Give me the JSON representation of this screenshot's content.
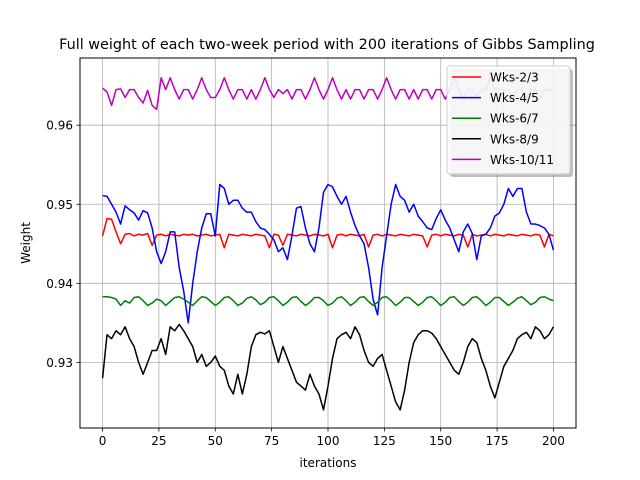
{
  "chart_data": {
    "type": "line",
    "title": "Full weight of each two-week period with 200 iterations of Gibbs Sampling",
    "xlabel": "iterations",
    "ylabel": "Weight",
    "xlim": [
      -10,
      210
    ],
    "ylim": [
      0.9217,
      0.9685
    ],
    "xticks": [
      0,
      25,
      50,
      75,
      100,
      125,
      150,
      175,
      200
    ],
    "yticks": [
      0.93,
      0.94,
      0.95,
      0.96
    ],
    "ytick_labels": [
      "0.93",
      "0.94",
      "0.95",
      "0.96"
    ],
    "grid": true,
    "legend": {
      "placement": "top-right",
      "shadow": true
    },
    "series": [
      {
        "name": "Wks-2/3",
        "color": "#ff0000",
        "x": [
          0,
          2,
          4,
          6,
          8,
          10,
          12,
          14,
          16,
          18,
          20,
          22,
          24,
          26,
          28,
          30,
          32,
          34,
          36,
          38,
          40,
          42,
          44,
          46,
          48,
          50,
          52,
          54,
          56,
          58,
          60,
          62,
          64,
          66,
          68,
          70,
          72,
          74,
          76,
          78,
          80,
          82,
          84,
          86,
          88,
          90,
          92,
          94,
          96,
          98,
          100,
          102,
          104,
          106,
          108,
          110,
          112,
          114,
          116,
          118,
          120,
          122,
          124,
          126,
          128,
          130,
          132,
          134,
          136,
          138,
          140,
          142,
          144,
          146,
          148,
          150,
          152,
          154,
          156,
          158,
          160,
          162,
          164,
          166,
          168,
          170,
          172,
          174,
          176,
          178,
          180,
          182,
          184,
          186,
          188,
          190,
          192,
          194,
          196,
          198,
          200
        ],
        "values": [
          0.946,
          0.9482,
          0.9481,
          0.9465,
          0.945,
          0.9462,
          0.9463,
          0.946,
          0.9462,
          0.9461,
          0.9463,
          0.9448,
          0.9461,
          0.9462,
          0.946,
          0.9462,
          0.9461,
          0.946,
          0.9462,
          0.9461,
          0.9462,
          0.946,
          0.9461,
          0.9462,
          0.946,
          0.9461,
          0.9462,
          0.9445,
          0.9462,
          0.9461,
          0.946,
          0.9462,
          0.9461,
          0.946,
          0.9462,
          0.9461,
          0.946,
          0.9445,
          0.9462,
          0.9461,
          0.9448,
          0.9462,
          0.9461,
          0.946,
          0.9462,
          0.9461,
          0.946,
          0.9462,
          0.9461,
          0.946,
          0.9462,
          0.9445,
          0.9461,
          0.9462,
          0.946,
          0.9462,
          0.9461,
          0.946,
          0.9462,
          0.9446,
          0.9461,
          0.9462,
          0.946,
          0.9462,
          0.9461,
          0.946,
          0.9462,
          0.9461,
          0.946,
          0.9462,
          0.9461,
          0.946,
          0.9446,
          0.9461,
          0.9462,
          0.946,
          0.9462,
          0.9461,
          0.946,
          0.9462,
          0.9461,
          0.9446,
          0.9462,
          0.946,
          0.9461,
          0.9462,
          0.946,
          0.9462,
          0.9461,
          0.946,
          0.9462,
          0.9461,
          0.946,
          0.9462,
          0.9461,
          0.946,
          0.9462,
          0.9461,
          0.9446,
          0.9462,
          0.946
        ]
      },
      {
        "name": "Wks-4/5",
        "color": "#0000ff",
        "x": [
          0,
          2,
          4,
          6,
          8,
          10,
          12,
          14,
          16,
          18,
          20,
          22,
          24,
          26,
          28,
          30,
          32,
          34,
          36,
          38,
          40,
          42,
          44,
          46,
          48,
          50,
          52,
          54,
          56,
          58,
          60,
          62,
          64,
          66,
          68,
          70,
          72,
          74,
          76,
          78,
          80,
          82,
          84,
          86,
          88,
          90,
          92,
          94,
          96,
          98,
          100,
          102,
          104,
          106,
          108,
          110,
          112,
          114,
          116,
          118,
          120,
          122,
          124,
          126,
          128,
          130,
          132,
          134,
          136,
          138,
          140,
          142,
          144,
          146,
          148,
          150,
          152,
          154,
          156,
          158,
          160,
          162,
          164,
          166,
          168,
          170,
          172,
          174,
          176,
          178,
          180,
          182,
          184,
          186,
          188,
          190,
          192,
          194,
          196,
          198,
          200
        ],
        "values": [
          0.9511,
          0.951,
          0.95,
          0.949,
          0.9475,
          0.9498,
          0.9493,
          0.9489,
          0.948,
          0.9492,
          0.9489,
          0.947,
          0.944,
          0.9425,
          0.944,
          0.9465,
          0.9465,
          0.942,
          0.939,
          0.935,
          0.94,
          0.944,
          0.947,
          0.9488,
          0.9488,
          0.946,
          0.9525,
          0.952,
          0.95,
          0.9505,
          0.9505,
          0.9495,
          0.949,
          0.949,
          0.9478,
          0.947,
          0.9468,
          0.9462,
          0.9455,
          0.944,
          0.9445,
          0.943,
          0.946,
          0.9495,
          0.9497,
          0.947,
          0.945,
          0.944,
          0.947,
          0.9515,
          0.9525,
          0.9522,
          0.951,
          0.95,
          0.951,
          0.949,
          0.9473,
          0.946,
          0.945,
          0.942,
          0.938,
          0.936,
          0.942,
          0.946,
          0.95,
          0.9525,
          0.951,
          0.9505,
          0.949,
          0.95,
          0.9485,
          0.9478,
          0.947,
          0.9468,
          0.9482,
          0.9493,
          0.948,
          0.947,
          0.9455,
          0.944,
          0.9465,
          0.9475,
          0.9463,
          0.943,
          0.946,
          0.9462,
          0.947,
          0.9485,
          0.9489,
          0.95,
          0.952,
          0.951,
          0.952,
          0.952,
          0.949,
          0.9475,
          0.9475,
          0.9473,
          0.947,
          0.9462,
          0.9442
        ]
      },
      {
        "name": "Wks-6/7",
        "color": "#008000",
        "x": [
          0,
          2,
          4,
          6,
          8,
          10,
          12,
          14,
          16,
          18,
          20,
          22,
          24,
          26,
          28,
          30,
          32,
          34,
          36,
          38,
          40,
          42,
          44,
          46,
          48,
          50,
          52,
          54,
          56,
          58,
          60,
          62,
          64,
          66,
          68,
          70,
          72,
          74,
          76,
          78,
          80,
          82,
          84,
          86,
          88,
          90,
          92,
          94,
          96,
          98,
          100,
          102,
          104,
          106,
          108,
          110,
          112,
          114,
          116,
          118,
          120,
          122,
          124,
          126,
          128,
          130,
          132,
          134,
          136,
          138,
          140,
          142,
          144,
          146,
          148,
          150,
          152,
          154,
          156,
          158,
          160,
          162,
          164,
          166,
          168,
          170,
          172,
          174,
          176,
          178,
          180,
          182,
          184,
          186,
          188,
          190,
          192,
          194,
          196,
          198,
          200
        ],
        "values": [
          0.9383,
          0.9383,
          0.9382,
          0.938,
          0.9372,
          0.9378,
          0.9375,
          0.9382,
          0.9383,
          0.9378,
          0.9372,
          0.9375,
          0.938,
          0.9378,
          0.9372,
          0.9377,
          0.9382,
          0.9383,
          0.938,
          0.9376,
          0.9372,
          0.9378,
          0.9383,
          0.9382,
          0.9377,
          0.9372,
          0.9376,
          0.9382,
          0.9383,
          0.9378,
          0.9372,
          0.9375,
          0.9381,
          0.9383,
          0.9379,
          0.9373,
          0.9376,
          0.9382,
          0.9383,
          0.9378,
          0.9372,
          0.9376,
          0.9382,
          0.9383,
          0.9377,
          0.9372,
          0.9376,
          0.9382,
          0.9382,
          0.9378,
          0.9372,
          0.9375,
          0.9381,
          0.9383,
          0.9378,
          0.9372,
          0.9376,
          0.9382,
          0.9383,
          0.9377,
          0.9372,
          0.9376,
          0.9382,
          0.9383,
          0.9378,
          0.9372,
          0.9376,
          0.9382,
          0.9382,
          0.9377,
          0.9372,
          0.9376,
          0.9382,
          0.9383,
          0.9378,
          0.9372,
          0.9376,
          0.9382,
          0.9383,
          0.9377,
          0.9372,
          0.9376,
          0.9382,
          0.9383,
          0.9378,
          0.9372,
          0.9376,
          0.9382,
          0.9382,
          0.9377,
          0.9372,
          0.9376,
          0.9381,
          0.9383,
          0.9378,
          0.9373,
          0.9376,
          0.9382,
          0.9383,
          0.938,
          0.9378
        ]
      },
      {
        "name": "Wks-8/9",
        "color": "#000000",
        "x": [
          0,
          2,
          4,
          6,
          8,
          10,
          12,
          14,
          16,
          18,
          20,
          22,
          24,
          26,
          28,
          30,
          32,
          34,
          36,
          38,
          40,
          42,
          44,
          46,
          48,
          50,
          52,
          54,
          56,
          58,
          60,
          62,
          64,
          66,
          68,
          70,
          72,
          74,
          76,
          78,
          80,
          82,
          84,
          86,
          88,
          90,
          92,
          94,
          96,
          98,
          100,
          102,
          104,
          106,
          108,
          110,
          112,
          114,
          116,
          118,
          120,
          122,
          124,
          126,
          128,
          130,
          132,
          134,
          136,
          138,
          140,
          142,
          144,
          146,
          148,
          150,
          152,
          154,
          156,
          158,
          160,
          162,
          164,
          166,
          168,
          170,
          172,
          174,
          176,
          178,
          180,
          182,
          184,
          186,
          188,
          190,
          192,
          194,
          196,
          198,
          200
        ],
        "values": [
          0.928,
          0.9335,
          0.933,
          0.934,
          0.9335,
          0.9345,
          0.933,
          0.932,
          0.93,
          0.9285,
          0.93,
          0.9315,
          0.9315,
          0.933,
          0.931,
          0.9345,
          0.934,
          0.9348,
          0.934,
          0.933,
          0.932,
          0.93,
          0.931,
          0.9295,
          0.93,
          0.9308,
          0.9295,
          0.929,
          0.927,
          0.926,
          0.9285,
          0.926,
          0.9285,
          0.932,
          0.9335,
          0.9338,
          0.9336,
          0.934,
          0.932,
          0.93,
          0.932,
          0.9305,
          0.929,
          0.9275,
          0.927,
          0.9265,
          0.9285,
          0.927,
          0.926,
          0.924,
          0.927,
          0.9305,
          0.933,
          0.9335,
          0.9338,
          0.933,
          0.9345,
          0.9335,
          0.9315,
          0.93,
          0.9295,
          0.9305,
          0.931,
          0.929,
          0.927,
          0.925,
          0.924,
          0.9265,
          0.93,
          0.9325,
          0.9335,
          0.934,
          0.934,
          0.9337,
          0.933,
          0.932,
          0.931,
          0.93,
          0.929,
          0.9285,
          0.93,
          0.932,
          0.933,
          0.9325,
          0.9305,
          0.929,
          0.927,
          0.9255,
          0.9275,
          0.9295,
          0.9305,
          0.9315,
          0.933,
          0.9335,
          0.9338,
          0.933,
          0.9345,
          0.934,
          0.933,
          0.9335,
          0.9345
        ]
      },
      {
        "name": "Wks-10/11",
        "color": "#bf00bf",
        "x": [
          0,
          2,
          4,
          6,
          8,
          10,
          12,
          14,
          16,
          18,
          20,
          22,
          24,
          26,
          28,
          30,
          32,
          34,
          36,
          38,
          40,
          42,
          44,
          46,
          48,
          50,
          52,
          54,
          56,
          58,
          60,
          62,
          64,
          66,
          68,
          70,
          72,
          74,
          76,
          78,
          80,
          82,
          84,
          86,
          88,
          90,
          92,
          94,
          96,
          98,
          100,
          102,
          104,
          106,
          108,
          110,
          112,
          114,
          116,
          118,
          120,
          122,
          124,
          126,
          128,
          130,
          132,
          134,
          136,
          138,
          140,
          142,
          144,
          146,
          148,
          150,
          152,
          154,
          156,
          158,
          160,
          162,
          164,
          166,
          168,
          170,
          172,
          174,
          176,
          178,
          180,
          182,
          184,
          186,
          188,
          190,
          192,
          194,
          196,
          198,
          200
        ],
        "values": [
          0.9647,
          0.9642,
          0.9625,
          0.9645,
          0.9646,
          0.9635,
          0.9645,
          0.9645,
          0.9635,
          0.9628,
          0.9644,
          0.9625,
          0.962,
          0.966,
          0.9645,
          0.966,
          0.9645,
          0.9633,
          0.9645,
          0.9645,
          0.9633,
          0.9645,
          0.966,
          0.9645,
          0.9635,
          0.9635,
          0.9645,
          0.966,
          0.9645,
          0.9633,
          0.9645,
          0.9645,
          0.9633,
          0.9645,
          0.9633,
          0.9645,
          0.966,
          0.9645,
          0.9635,
          0.9645,
          0.964,
          0.9645,
          0.9633,
          0.9645,
          0.9645,
          0.9633,
          0.9645,
          0.966,
          0.9645,
          0.9633,
          0.9645,
          0.966,
          0.9645,
          0.9633,
          0.9645,
          0.9633,
          0.9645,
          0.9645,
          0.9633,
          0.9645,
          0.9645,
          0.9633,
          0.9645,
          0.966,
          0.9645,
          0.9633,
          0.9645,
          0.9645,
          0.9633,
          0.9645,
          0.9633,
          0.9645,
          0.9645,
          0.9633,
          0.9645,
          0.9645,
          0.9633,
          0.9645,
          0.966,
          0.9645,
          0.9633,
          0.9645,
          0.9645,
          0.9635,
          0.9645,
          0.9645,
          0.966,
          0.9645,
          0.9633,
          0.9645,
          0.9645,
          0.9633,
          0.9645,
          0.9645,
          0.9633,
          0.9645,
          0.9645,
          0.9633,
          0.9645,
          0.9645,
          0.9643
        ]
      }
    ]
  }
}
